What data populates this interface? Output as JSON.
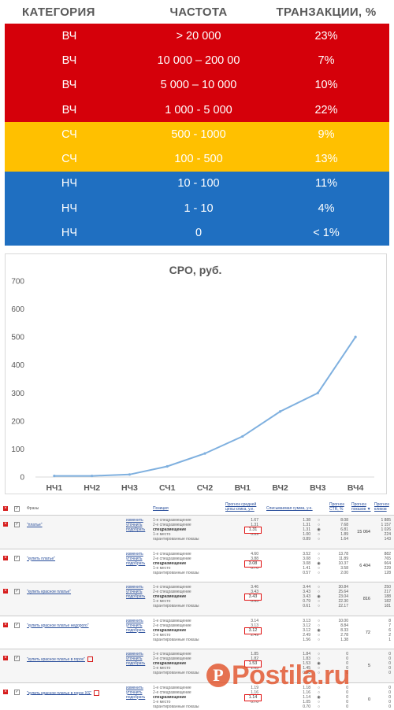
{
  "freq_table": {
    "headers": [
      "КАТЕГОРИЯ",
      "ЧАСТОТА",
      "ТРАНЗАКЦИИ, %"
    ],
    "colors": {
      "red": "#d5000a",
      "yellow": "#ffc000",
      "blue": "#1f6fc1",
      "header_text": "#595959"
    },
    "rows": [
      {
        "category": "ВЧ",
        "frequency": "> 20 000",
        "transactions": "23%",
        "band": "red"
      },
      {
        "category": "ВЧ",
        "frequency": "10 000 – 200 00",
        "transactions": "7%",
        "band": "red"
      },
      {
        "category": "ВЧ",
        "frequency": "5 000 – 10 000",
        "transactions": "10%",
        "band": "red"
      },
      {
        "category": "ВЧ",
        "frequency": "1 000 - 5 000",
        "transactions": "22%",
        "band": "red"
      },
      {
        "category": "СЧ",
        "frequency": "500 - 1000",
        "transactions": "9%",
        "band": "yellow"
      },
      {
        "category": "СЧ",
        "frequency": "100 - 500",
        "transactions": "13%",
        "band": "yellow"
      },
      {
        "category": "НЧ",
        "frequency": "10 - 100",
        "transactions": "11%",
        "band": "blue"
      },
      {
        "category": "НЧ",
        "frequency": "1 - 10",
        "transactions": "4%",
        "band": "blue"
      },
      {
        "category": "НЧ",
        "frequency": "0",
        "transactions": "< 1%",
        "band": "blue"
      }
    ]
  },
  "chart_data": {
    "type": "line",
    "title": "CPO, руб.",
    "xlabel": "",
    "ylabel": "",
    "categories": [
      "НЧ1",
      "НЧ2",
      "НЧ3",
      "СЧ1",
      "СЧ2",
      "ВЧ1",
      "ВЧ2",
      "ВЧ3",
      "ВЧ4"
    ],
    "series": [
      {
        "values": [
          4,
          4,
          9,
          38,
          84,
          145,
          234,
          300,
          500
        ]
      }
    ],
    "ylim": [
      0,
      700
    ],
    "yticks": [
      "0",
      "100",
      "200",
      "300",
      "400",
      "500",
      "600",
      "700"
    ],
    "grid": false,
    "legend": "none",
    "line_color": "#7fb0df"
  },
  "bid_table": {
    "headers": {
      "phrases": "Фразы",
      "positions": "Позиция",
      "predicted_cost": "Прогноз средней цены клика, у.е.",
      "charged_cost": "Списываемая сумма, у.е.",
      "ctr": "Прогноз CTR, %",
      "shows": "Прогноз показов ▼",
      "clicks": "Прогноз кликов"
    },
    "links": [
      "изменить",
      "уточнить",
      "подобрать"
    ],
    "position_labels": [
      "1-е спецразмещение",
      "2-е спецразмещение",
      "спецразмещение",
      "1-е место",
      "гарантированные показы"
    ],
    "rows": [
      {
        "phrase": "\"платье\"",
        "flag": false,
        "predicted": [
          "1.67",
          "1.31",
          "",
          "1.00",
          "0.89"
        ],
        "highlight": "1.31",
        "charged": [
          "1.38",
          "1.31",
          "1.31",
          "1.00",
          "0.89"
        ],
        "ctr": [
          "8.08",
          "7.68",
          "6.81",
          "1.89",
          "1.64"
        ],
        "shows": "15 064",
        "clicks": [
          "1 885",
          "1 157",
          "1 026",
          "224",
          "143"
        ]
      },
      {
        "phrase": "\"купить платье\"",
        "flag": false,
        "predicted": [
          "4.60",
          "3.88",
          "",
          "1.41",
          "0.70"
        ],
        "highlight": "3.08",
        "charged": [
          "3.52",
          "3.08",
          "3.08",
          "1.41",
          "0.57"
        ],
        "ctr": [
          "13.78",
          "11.89",
          "10.37",
          "3.58",
          "2.00"
        ],
        "shows": "6 404",
        "clicks": [
          "882",
          "765",
          "664",
          "229",
          "128"
        ]
      },
      {
        "phrase": "\"купить красное платье\"",
        "flag": false,
        "predicted": [
          "3.46",
          "3.43",
          "",
          "1.72",
          "0.65"
        ],
        "highlight": "3.43",
        "charged": [
          "3.44",
          "3.43",
          "3.43",
          "0.79",
          "0.61"
        ],
        "ctr": [
          "30.84",
          "25.64",
          "23.04",
          "22.30",
          "22.17"
        ],
        "shows": "816",
        "clicks": [
          "250",
          "217",
          "188",
          "182",
          "181"
        ]
      },
      {
        "phrase": "\"купить красное платье недорого\"",
        "flag": false,
        "predicted": [
          "3.14",
          "3.13",
          "",
          "3.44",
          "2.49"
        ],
        "highlight": "3.12",
        "charged": [
          "3.13",
          "3.12",
          "3.12",
          "2.49",
          "1.56"
        ],
        "ctr": [
          "10.00",
          "8.84",
          "8.33",
          "2.78",
          "1.38"
        ],
        "shows": "72",
        "clicks": [
          "8",
          "7",
          "6",
          "2",
          "1"
        ]
      },
      {
        "phrase": "\"купить красное платье в горох\"",
        "flag": true,
        "predicted": [
          "1.85",
          "1.82",
          "",
          "1.67",
          "1.05"
        ],
        "highlight": "1.53",
        "charged": [
          "1.84",
          "1.83",
          "1.53",
          "1.45",
          "0.98"
        ],
        "ctr": [
          "0",
          "0",
          "0",
          "0",
          "0"
        ],
        "shows": "5",
        "clicks": [
          "0",
          "0",
          "0",
          "0",
          "0"
        ]
      },
      {
        "phrase": "\"купить красное платье в горох XS\"",
        "flag": true,
        "predicted": [
          "1.19",
          "1.16",
          "",
          "1.10",
          "0.70"
        ],
        "highlight": "1.14",
        "charged": [
          "1.18",
          "1.16",
          "1.14",
          "1.05",
          "0.70"
        ],
        "ctr": [
          "0",
          "0",
          "0",
          "0",
          "0"
        ],
        "shows": "0",
        "clicks": [
          "0",
          "0",
          "0",
          "0",
          "0"
        ]
      }
    ]
  },
  "watermark": {
    "logo_letter": "P",
    "text": "Postila.ru",
    "color": "#e2542c"
  }
}
